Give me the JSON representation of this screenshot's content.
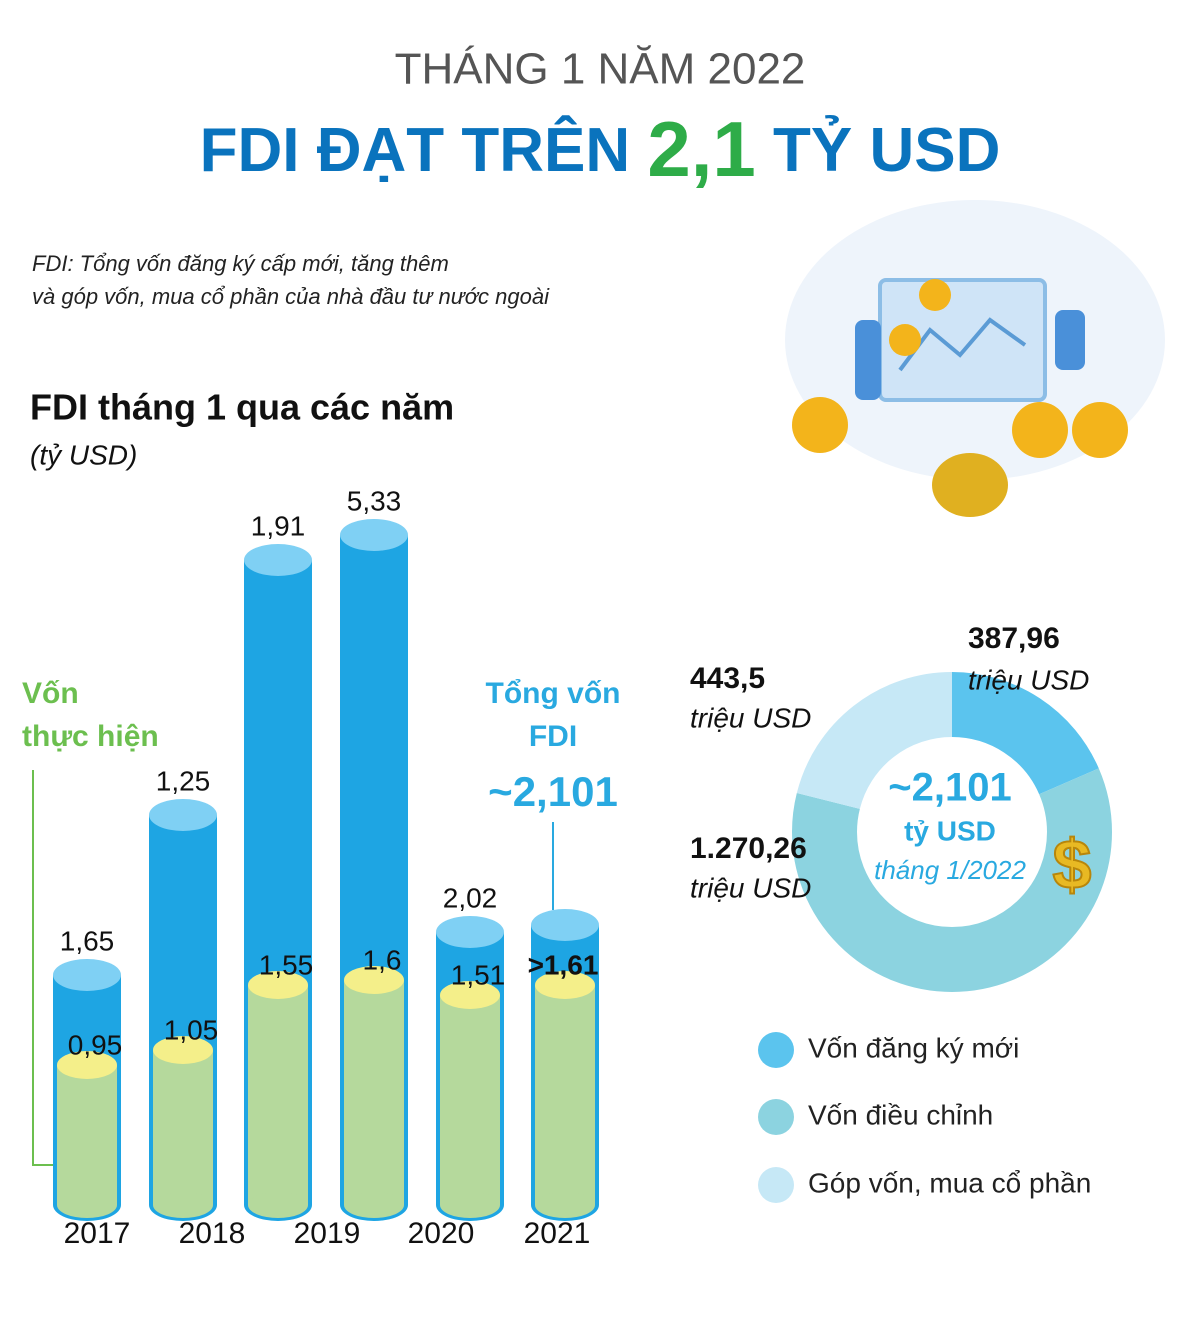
{
  "header": {
    "subtitle": "THÁNG 1 NĂM 2022",
    "title_pre": "FDI ĐẠT TRÊN",
    "title_num": "2,1",
    "title_post": "TỶ USD"
  },
  "note": [
    "FDI: Tổng vốn đăng ký cấp mới, tăng thêm",
    "và góp vốn, mua cổ phần của nhà đầu tư nước ngoài"
  ],
  "bar_section": {
    "title": "FDI tháng 1 qua các năm",
    "unit": "(tỷ USD)",
    "implemented_label": [
      "Vốn",
      "thực hiện"
    ],
    "total_label": [
      "Tổng vốn",
      "FDI"
    ],
    "total_value": "~2,101",
    "years": [
      "2017",
      "2018",
      "2019",
      "2020",
      "2021"
    ],
    "bars": [
      {
        "total": "1,65",
        "implemented": "0,95"
      },
      {
        "total": "1,25",
        "implemented": "1,05"
      },
      {
        "total": "1,91",
        "implemented": "1,55"
      },
      {
        "total": "5,33",
        "implemented": "1,6"
      },
      {
        "total": "2,02",
        "implemented": "1,51"
      },
      {
        "implemented": ">1,61"
      }
    ]
  },
  "donut": {
    "center_value": "~2,101",
    "center_unit": "tỷ USD",
    "center_period": "tháng 1/2022",
    "segments": [
      {
        "value": "387,96",
        "unit": "triệu USD",
        "legend": "Vốn đăng ký mới"
      },
      {
        "value": "1.270,26",
        "unit": "triệu USD",
        "legend": "Vốn điều chỉnh"
      },
      {
        "value": "443,5",
        "unit": "triệu USD",
        "legend": "Góp vốn, mua cổ phần"
      }
    ]
  }
}
